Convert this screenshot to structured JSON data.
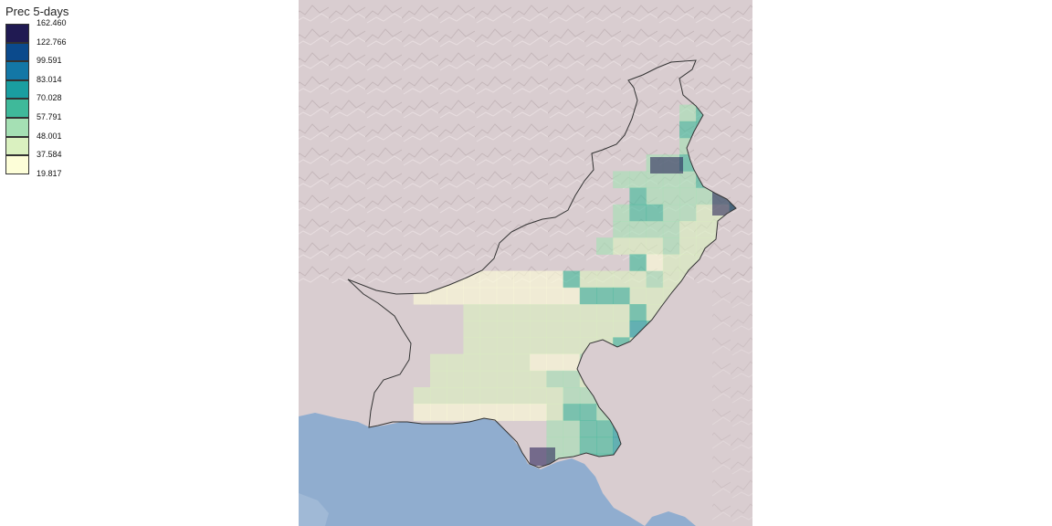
{
  "legend": {
    "title": "Prec 5-days",
    "breaks": [
      "162.460",
      "122.766",
      "99.591",
      "83.014",
      "70.028",
      "57.791",
      "48.001",
      "37.584",
      "19.817"
    ],
    "colors": [
      "#201a52",
      "#0b4a8c",
      "#1377a6",
      "#1a9ea0",
      "#3fb99a",
      "#a5e0b4",
      "#daf1c0",
      "#fdfed8"
    ]
  },
  "colors": {
    "sea": "#90adcf",
    "land": "#d9cdd0",
    "border": "#333333"
  }
}
